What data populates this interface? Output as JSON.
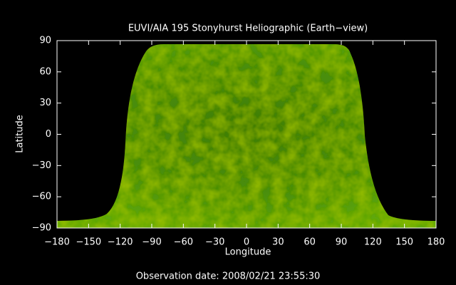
{
  "chart_data": {
    "type": "image",
    "title": "EUVI/AIA 195 Stonyhurst Heliographic (Earth−view)",
    "xlabel": "Longitude",
    "ylabel": "Latitude",
    "annotation": "Observation date: 2008/02/21 23:55:30",
    "xlim": [
      -180,
      180
    ],
    "ylim": [
      -90,
      90
    ],
    "xticks": [
      {
        "value": -180,
        "label": "−180"
      },
      {
        "value": -150,
        "label": "−150"
      },
      {
        "value": -120,
        "label": "−120"
      },
      {
        "value": -90,
        "label": "−90"
      },
      {
        "value": -60,
        "label": "−60"
      },
      {
        "value": -30,
        "label": "−30"
      },
      0,
      30,
      60,
      90,
      120,
      150,
      180
    ],
    "yticks": [
      {
        "value": -90,
        "label": "−90"
      },
      {
        "value": -60,
        "label": "−60"
      },
      {
        "value": -30,
        "label": "−30"
      },
      0,
      30,
      60,
      90
    ]
  }
}
